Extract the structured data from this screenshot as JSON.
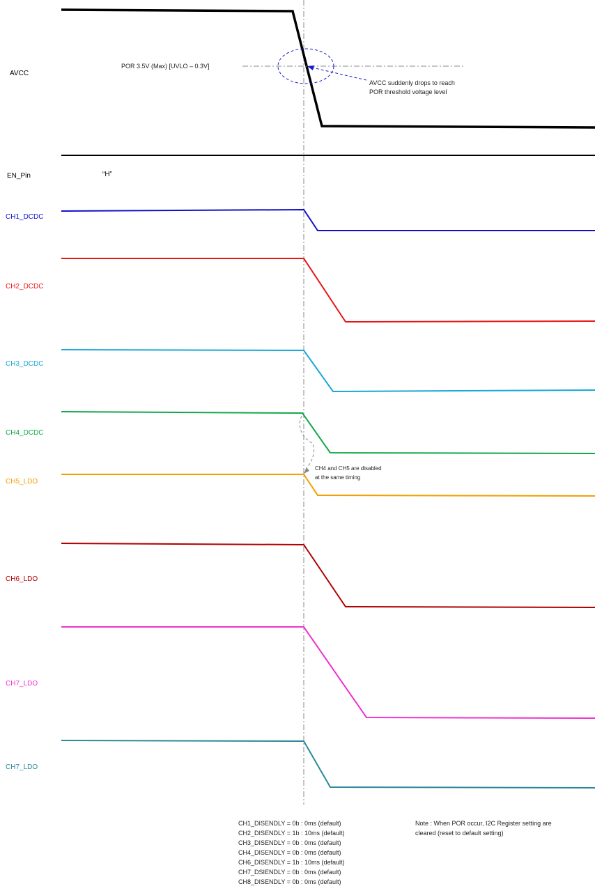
{
  "colors": {
    "avcc": "#000000",
    "ch1": "#1010c8",
    "ch2": "#e81515",
    "ch3": "#17a8d8",
    "ch4": "#10a848",
    "ch5": "#f0a000",
    "ch6": "#b00000",
    "ch7a": "#f030d0",
    "ch7b": "#2a8898",
    "annotation": "#1a1ad0",
    "guide": "#888888"
  },
  "signals": {
    "avcc": "AVCC",
    "en_pin": "EN_Pin",
    "en_state": "“H”",
    "ch1": "CH1_DCDC",
    "ch2": "CH2_DCDC",
    "ch3": "CH3_DCDC",
    "ch4": "CH4_DCDC",
    "ch5": "CH5_LDO",
    "ch6": "CH6_LDO",
    "ch7a": "CH7_LDO",
    "ch7b": "CH7_LDO"
  },
  "annotations": {
    "por_threshold": "POR 3.5V (Max) [UVLO – 0.3V]",
    "avcc_drop_line1": "AVCC suddenly drops to  reach",
    "avcc_drop_line2": "POR threshold voltage level",
    "ch4_ch5_line1": "CH4 and CH5 are disabled",
    "ch4_ch5_line2": "at the same timing"
  },
  "settings": [
    "CH1_DISENDLY = 0b : 0ms (default)",
    "CH2_DISENDLY = 1b : 10ms (default)",
    "CH3_DISENDLY = 0b : 0ms (default)",
    "CH4_DISENDLY = 0b : 0ms (default)",
    "CH6_DISENDLY = 1b : 10ms (default)",
    "CH7_DSIENDLY = 0b : 0ms (default)",
    "CH8_DISENDLY = 0b : 0ms (default)"
  ],
  "note": {
    "line1": "Note : When POR occur,  I2C Register setting are",
    "line2": "cleared (reset to default setting)"
  }
}
